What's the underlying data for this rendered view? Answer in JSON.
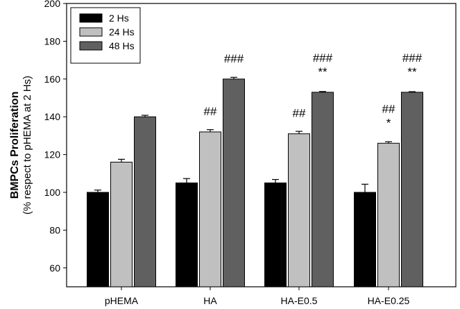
{
  "chart_data": {
    "type": "bar",
    "title": "",
    "xlabel": "",
    "ylabel": "BMPCs Proliferation",
    "ylabel2": "(% respect to pHEMA at 2 Hs)",
    "ylim": [
      50,
      200
    ],
    "yticks": [
      60,
      80,
      100,
      120,
      140,
      160,
      180,
      200
    ],
    "categories": [
      "pHEMA",
      "HA",
      "HA-E0.5",
      "HA-E0.25"
    ],
    "legend_placement": "top-left",
    "grid": false,
    "series": [
      {
        "name": "2 Hs",
        "color": "#000000",
        "values": [
          100,
          105,
          105,
          100
        ],
        "errors": [
          1.2,
          2.3,
          1.8,
          4.3
        ],
        "annotations": [
          [],
          [],
          [],
          []
        ]
      },
      {
        "name": "24 Hs",
        "color": "#c0c0c0",
        "values": [
          116,
          132,
          131,
          126
        ],
        "errors": [
          1.5,
          1.2,
          1.3,
          0.8
        ],
        "annotations": [
          [],
          [
            "##"
          ],
          [
            "##"
          ],
          [
            "##",
            "*"
          ]
        ]
      },
      {
        "name": "48 Hs",
        "color": "#606060",
        "values": [
          140,
          160,
          153,
          153
        ],
        "errors": [
          0.8,
          0.9,
          0.4,
          0.3
        ],
        "annotations": [
          [],
          [
            "###"
          ],
          [
            "###",
            "**"
          ],
          [
            "###",
            "**"
          ]
        ]
      }
    ]
  }
}
